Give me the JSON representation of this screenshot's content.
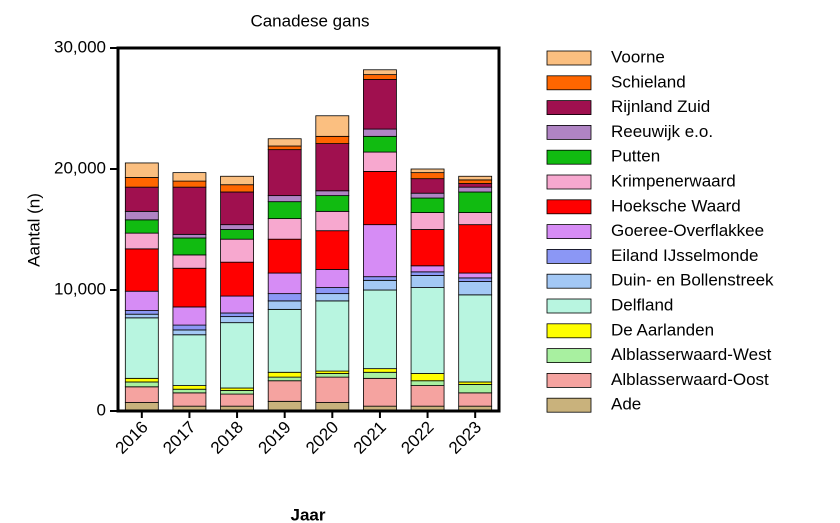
{
  "chart_data": {
    "type": "stacked-bar",
    "title": "Canadese gans",
    "xlabel": "Jaar",
    "ylabel": "Aantal (n)",
    "categories": [
      "2016",
      "2017",
      "2018",
      "2019",
      "2020",
      "2021",
      "2022",
      "2023"
    ],
    "ylim": [
      0,
      30000
    ],
    "yticks": [
      0,
      {
        "value": 10000,
        "label": "10,000"
      },
      {
        "value": 20000,
        "label": "20,000"
      },
      {
        "value": 30000,
        "label": "30,000"
      }
    ],
    "legend": "right",
    "series": [
      {
        "name": "Ade",
        "color": "#c9b27c",
        "values": [
          700,
          400,
          400,
          800,
          700,
          400,
          400,
          400
        ]
      },
      {
        "name": "Alblasserwaard-Oost",
        "color": "#f5a3a0",
        "values": [
          1300,
          1100,
          1000,
          1700,
          2100,
          2300,
          1700,
          1100
        ]
      },
      {
        "name": "Alblasserwaard-West",
        "color": "#a8f0a0",
        "values": [
          400,
          300,
          300,
          300,
          300,
          500,
          400,
          700
        ]
      },
      {
        "name": "De Aarlanden",
        "color": "#ffff00",
        "values": [
          300,
          300,
          200,
          400,
          200,
          300,
          600,
          200
        ]
      },
      {
        "name": "Delfland",
        "color": "#b8f5e0",
        "values": [
          5000,
          4200,
          5400,
          5200,
          5800,
          6500,
          7100,
          7200
        ]
      },
      {
        "name": "Duin- en Bollenstreek",
        "color": "#a3c8f5",
        "values": [
          300,
          400,
          500,
          700,
          600,
          800,
          1000,
          1100
        ]
      },
      {
        "name": "Eiland IJsselmonde",
        "color": "#8b97f5",
        "values": [
          300,
          400,
          300,
          600,
          500,
          300,
          300,
          300
        ]
      },
      {
        "name": "Goeree-Overflakkee",
        "color": "#d68cf5",
        "values": [
          1600,
          1500,
          1400,
          1700,
          1500,
          4300,
          500,
          400
        ]
      },
      {
        "name": "Hoeksche Waard",
        "color": "#ff0000",
        "values": [
          3500,
          3200,
          2800,
          2800,
          3200,
          4400,
          3000,
          4000
        ]
      },
      {
        "name": "Krimpenerwaard",
        "color": "#f7a8cf",
        "values": [
          1300,
          1100,
          1900,
          1700,
          1600,
          1600,
          1400,
          1000
        ]
      },
      {
        "name": "Putten",
        "color": "#11bb11",
        "values": [
          1100,
          1400,
          800,
          1400,
          1300,
          1300,
          1200,
          1700
        ]
      },
      {
        "name": "Reeuwijk e.o.",
        "color": "#b084c4",
        "values": [
          700,
          300,
          400,
          500,
          400,
          600,
          400,
          400
        ]
      },
      {
        "name": "Rijnland Zuid",
        "color": "#a0104f",
        "values": [
          2000,
          3900,
          2700,
          3800,
          3900,
          4100,
          1200,
          300
        ]
      },
      {
        "name": "Schieland",
        "color": "#ff6600",
        "values": [
          800,
          500,
          600,
          300,
          600,
          400,
          500,
          300
        ]
      },
      {
        "name": "Voorne",
        "color": "#fbbf80",
        "values": [
          1200,
          700,
          700,
          600,
          1700,
          400,
          300,
          300
        ]
      }
    ]
  }
}
